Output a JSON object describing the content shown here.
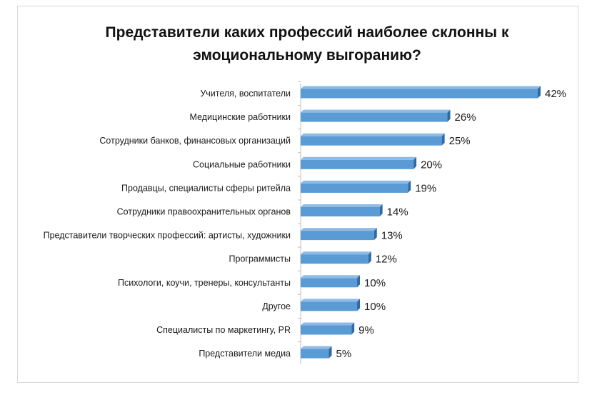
{
  "chart_data": {
    "type": "bar",
    "orientation": "horizontal",
    "title_lines": [
      "Представители каких профессий наиболее склонны к",
      "эмоциональному  выгоранию?"
    ],
    "categories": [
      "Учителя, воспитатели",
      "Медицинские работники",
      "Сотрудники банков, финансовых организаций",
      "Социальные работники",
      "Продавцы, специалисты сферы ритейла",
      "Сотрудники правоохранительных органов",
      "Представители творческих профессий: артисты, художники",
      "Программисты",
      "Психологи, коучи, тренеры, консультанты",
      "Другое",
      "Специалисты по маркетингу, PR",
      "Представители медиа"
    ],
    "values": [
      42,
      26,
      25,
      20,
      19,
      14,
      13,
      12,
      10,
      10,
      9,
      5
    ],
    "value_labels": [
      "42%",
      "26%",
      "25%",
      "20%",
      "19%",
      "14%",
      "13%",
      "12%",
      "10%",
      "10%",
      "9%",
      "5%"
    ],
    "unit": "%",
    "xlim": [
      0,
      42
    ],
    "grid": false,
    "legend": "none",
    "bar_color": "#5b9bd5",
    "bar_edge_color": "#2f6aa3"
  }
}
